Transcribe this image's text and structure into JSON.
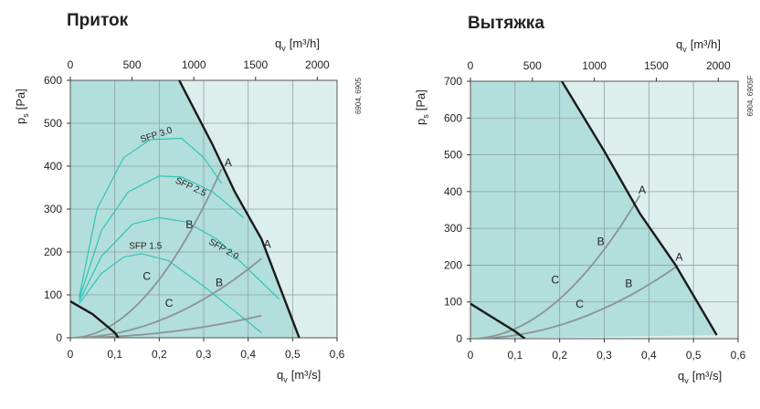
{
  "chart_data": [
    {
      "type": "line",
      "title": "Приток",
      "side_code": "6904, 6905",
      "x_bottom": {
        "label": "q",
        "sub": "v",
        "unit": "[m³/s]",
        "range": [
          0,
          0.6
        ],
        "ticks": [
          "0",
          "0,1",
          "0,2",
          "0,3",
          "0,4",
          "0,5",
          "0,6"
        ]
      },
      "x_top": {
        "label": "q",
        "sub": "v",
        "unit": "[m³/h]",
        "range": [
          0,
          2160
        ],
        "ticks": [
          "0",
          "500",
          "1000",
          "1500",
          "2000"
        ],
        "tick_values": [
          0,
          500,
          1000,
          1500,
          2000
        ]
      },
      "y": {
        "label": "p",
        "sub": "s",
        "unit": "[Pa]",
        "range": [
          0,
          600
        ],
        "ticks": [
          "0",
          "100",
          "200",
          "300",
          "400",
          "500",
          "600"
        ],
        "tick_values": [
          0,
          100,
          200,
          300,
          400,
          500,
          600
        ]
      },
      "grid": true,
      "colors": {
        "dark_zone": "#b2dedb",
        "light_zone": "#dcefed",
        "grid": "#8fa3a1",
        "fan": "#1a1a1a",
        "system": "#8a9494",
        "sfp": "#28c2b7"
      },
      "fan_curves": [
        {
          "points": [
            [
              0.245,
              600
            ],
            [
              0.32,
              450
            ],
            [
              0.37,
              340
            ],
            [
              0.43,
              230
            ],
            [
              0.515,
              0
            ]
          ]
        },
        {
          "points": [
            [
              0,
              85
            ],
            [
              0.05,
              55
            ],
            [
              0.1,
              12
            ],
            [
              0.108,
              0
            ]
          ]
        }
      ],
      "system_curves": [
        {
          "label": "A",
          "k": 3400,
          "end": 0.34
        },
        {
          "label": "B",
          "k": 1000,
          "end": 0.43
        },
        {
          "label": "C",
          "k": 280,
          "end": 0.43
        }
      ],
      "curve_labels": [
        {
          "text": "A",
          "x": 0.355,
          "y": 400
        },
        {
          "text": "A",
          "x": 0.443,
          "y": 210
        },
        {
          "text": "B",
          "x": 0.268,
          "y": 255
        },
        {
          "text": "B",
          "x": 0.335,
          "y": 120
        },
        {
          "text": "C",
          "x": 0.172,
          "y": 135
        },
        {
          "text": "C",
          "x": 0.222,
          "y": 72
        }
      ],
      "sfp_curves": [
        {
          "label": "SFP 3.0",
          "points": [
            [
              0.02,
              95
            ],
            [
              0.06,
              300
            ],
            [
              0.12,
              420
            ],
            [
              0.18,
              462
            ],
            [
              0.25,
              465
            ],
            [
              0.3,
              420
            ],
            [
              0.34,
              360
            ]
          ],
          "label_pos": [
            0.16,
            455
          ],
          "angle": -18
        },
        {
          "label": "SFP 2.5",
          "points": [
            [
              0.02,
              90
            ],
            [
              0.07,
              250
            ],
            [
              0.13,
              340
            ],
            [
              0.2,
              377
            ],
            [
              0.25,
              375
            ],
            [
              0.32,
              340
            ],
            [
              0.39,
              280
            ]
          ],
          "label_pos": [
            0.235,
            362
          ],
          "angle": 25
        },
        {
          "label": "SFP 2.0",
          "points": [
            [
              0.02,
              85
            ],
            [
              0.07,
              190
            ],
            [
              0.14,
              265
            ],
            [
              0.2,
              280
            ],
            [
              0.26,
              270
            ],
            [
              0.33,
              230
            ],
            [
              0.47,
              90
            ]
          ],
          "label_pos": [
            0.31,
            220
          ],
          "angle": 30
        },
        {
          "label": "SFP 1.5",
          "points": [
            [
              0.02,
              80
            ],
            [
              0.07,
              150
            ],
            [
              0.12,
              188
            ],
            [
              0.16,
              196
            ],
            [
              0.22,
              180
            ],
            [
              0.3,
              120
            ],
            [
              0.43,
              12
            ]
          ],
          "label_pos": [
            0.132,
            207
          ],
          "angle": 0
        }
      ]
    },
    {
      "type": "line",
      "title": "Вытяжка",
      "side_code": "6904, 6905F",
      "x_bottom": {
        "label": "q",
        "sub": "v",
        "unit": "[m³/s]",
        "range": [
          0,
          0.6
        ],
        "ticks": [
          "0",
          "0,1",
          "0,2",
          "0,3",
          "0,4",
          "0,5",
          "0,6"
        ]
      },
      "x_top": {
        "label": "q",
        "sub": "v",
        "unit": "[m³/h]",
        "range": [
          0,
          2160
        ],
        "ticks": [
          "0",
          "500",
          "1000",
          "1500",
          "2000"
        ],
        "tick_values": [
          0,
          500,
          1000,
          1500,
          2000
        ]
      },
      "y": {
        "label": "p",
        "sub": "s",
        "unit": "[Pa]",
        "range": [
          0,
          700
        ],
        "ticks": [
          "0",
          "100",
          "200",
          "300",
          "400",
          "500",
          "600",
          "700"
        ],
        "tick_values": [
          0,
          100,
          200,
          300,
          400,
          500,
          600,
          700
        ]
      },
      "grid": true,
      "colors": {
        "dark_zone": "#b2dedb",
        "light_zone": "#dcefed",
        "grid": "#8fa3a1",
        "fan": "#1a1a1a",
        "system": "#8a9494",
        "sfp": "#28c2b7"
      },
      "fan_curves": [
        {
          "points": [
            [
              0.205,
              700
            ],
            [
              0.3,
              510
            ],
            [
              0.38,
              340
            ],
            [
              0.46,
              200
            ],
            [
              0.552,
              10
            ]
          ]
        },
        {
          "points": [
            [
              0,
              95
            ],
            [
              0.06,
              50
            ],
            [
              0.1,
              20
            ],
            [
              0.122,
              0
            ]
          ]
        }
      ],
      "system_curves": [
        {
          "label": "A",
          "k": 2700,
          "end": 0.38
        },
        {
          "label": "B",
          "k": 920,
          "end": 0.465
        }
      ],
      "curve_labels": [
        {
          "text": "A",
          "x": 0.385,
          "y": 395
        },
        {
          "text": "A",
          "x": 0.468,
          "y": 212
        },
        {
          "text": "B",
          "x": 0.292,
          "y": 255
        },
        {
          "text": "B",
          "x": 0.355,
          "y": 140
        },
        {
          "text": "C",
          "x": 0.19,
          "y": 150
        },
        {
          "text": "C",
          "x": 0.245,
          "y": 85
        }
      ],
      "sfp_curves": []
    }
  ]
}
